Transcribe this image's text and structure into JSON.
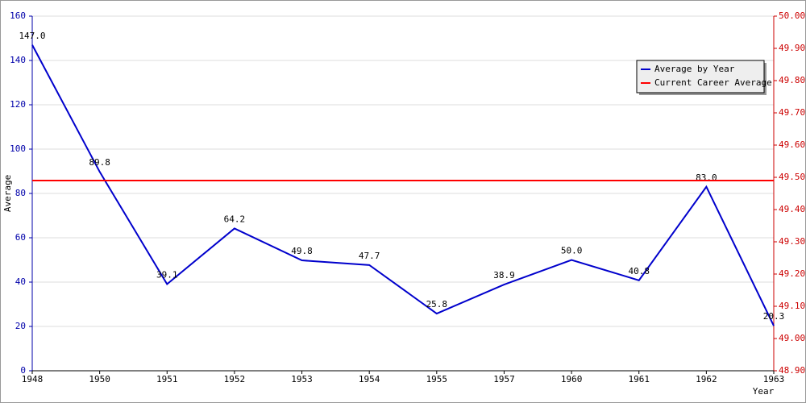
{
  "chart_data": {
    "type": "line",
    "categories": [
      "1948",
      "1950",
      "1951",
      "1952",
      "1953",
      "1954",
      "1955",
      "1957",
      "1960",
      "1961",
      "1962",
      "1963"
    ],
    "y_label": "Average",
    "x_label": "Year",
    "series": [
      {
        "name": "Average by Year",
        "color": "#0000cc",
        "values": [
          147.0,
          89.8,
          39.1,
          64.2,
          49.8,
          47.7,
          25.8,
          38.9,
          50.0,
          40.8,
          83.0,
          20.3
        ],
        "value_labels": [
          "147.0",
          "89.8",
          "39.1",
          "64.2",
          "49.8",
          "47.7",
          "25.8",
          "38.9",
          "50.0",
          "40.8",
          "83.0",
          "20.3"
        ]
      },
      {
        "name": "Current Career Average",
        "color": "#ff0000",
        "axis": "y2",
        "values": [
          49.49,
          49.49,
          49.49,
          49.49,
          49.49,
          49.49,
          49.49,
          49.49,
          49.49,
          49.49,
          49.49,
          49.49
        ]
      }
    ],
    "ylim": [
      0,
      160
    ],
    "yticks": [
      0,
      20,
      40,
      60,
      80,
      100,
      120,
      140,
      160
    ],
    "y2lim": [
      48.9,
      50.0
    ],
    "y2ticks": [
      {
        "value": 48.9,
        "label": "48.90"
      },
      {
        "value": 49.0,
        "label": "49.00"
      },
      {
        "value": 49.1,
        "label": "49.10"
      },
      {
        "value": 49.2,
        "label": "49.20"
      },
      {
        "value": 49.3,
        "label": "49.30"
      },
      {
        "value": 49.4,
        "label": "49.40"
      },
      {
        "value": 49.5,
        "label": "49.50"
      },
      {
        "value": 49.6,
        "label": "49.60"
      },
      {
        "value": 49.7,
        "label": "49.70"
      },
      {
        "value": 49.8,
        "label": "49.80"
      },
      {
        "value": 49.9,
        "label": "49.90"
      },
      {
        "value": 50.0,
        "label": "50.00"
      }
    ],
    "grid": true,
    "legend": "upper right",
    "y_tick_color": "#0000aa",
    "y2_tick_color": "#cc0000"
  }
}
